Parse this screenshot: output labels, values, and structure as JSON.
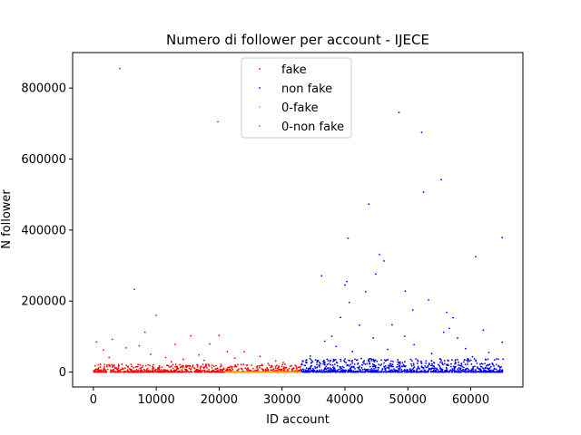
{
  "chart_data": {
    "type": "scatter",
    "title": "Numero di follower per account - IJECE",
    "xlabel": "ID account",
    "ylabel": "N follower",
    "xlim": [
      -3300,
      68300
    ],
    "ylim": [
      -42000,
      900000
    ],
    "xticks": [
      0,
      10000,
      20000,
      30000,
      40000,
      50000,
      60000
    ],
    "xtick_labels": [
      "0",
      "10000",
      "20000",
      "30000",
      "40000",
      "50000",
      "60000"
    ],
    "yticks": [
      0,
      200000,
      400000,
      600000,
      800000
    ],
    "ytick_labels": [
      "0",
      "200000",
      "400000",
      "600000",
      "800000"
    ],
    "grid": false,
    "legend_position": "top-center",
    "series": [
      {
        "name": "fake",
        "color": "#ff0000",
        "x_range": [
          0,
          33000
        ],
        "points": [
          [
            4200,
            855000
          ],
          [
            19800,
            705000
          ],
          [
            6500,
            233000
          ],
          [
            10000,
            160000
          ],
          [
            8200,
            112000
          ],
          [
            15500,
            102000
          ],
          [
            13000,
            78000
          ],
          [
            3000,
            92000
          ],
          [
            20000,
            103000
          ],
          [
            24000,
            57000
          ],
          [
            500,
            85000
          ],
          [
            18500,
            79000
          ],
          [
            7300,
            74000
          ],
          [
            26500,
            44000
          ],
          [
            11500,
            41000
          ],
          [
            22500,
            39000
          ],
          [
            1600,
            62000
          ],
          [
            29000,
            31000
          ],
          [
            16800,
            48000
          ],
          [
            9100,
            50000
          ],
          [
            5200,
            68000
          ],
          [
            14300,
            36000
          ],
          [
            21300,
            58000
          ],
          [
            27800,
            24000
          ],
          [
            2500,
            41000
          ],
          [
            31500,
            18000
          ],
          [
            12400,
            29000
          ],
          [
            17600,
            33000
          ],
          [
            23500,
            21000
          ],
          [
            30200,
            27000
          ]
        ]
      },
      {
        "name": "non fake",
        "color": "#0000ff",
        "x_range": [
          33000,
          65200
        ],
        "points": [
          [
            48600,
            731000
          ],
          [
            52200,
            675000
          ],
          [
            55300,
            542000
          ],
          [
            52500,
            507000
          ],
          [
            43800,
            473000
          ],
          [
            40500,
            377000
          ],
          [
            65000,
            379000
          ],
          [
            60800,
            325000
          ],
          [
            45500,
            331000
          ],
          [
            46200,
            313000
          ],
          [
            36300,
            271000
          ],
          [
            44900,
            276000
          ],
          [
            40300,
            255000
          ],
          [
            49600,
            228000
          ],
          [
            40000,
            245000
          ],
          [
            43300,
            226000
          ],
          [
            40700,
            196000
          ],
          [
            53300,
            203000
          ],
          [
            39300,
            154000
          ],
          [
            50800,
            175000
          ],
          [
            57200,
            153000
          ],
          [
            56200,
            168000
          ],
          [
            42300,
            132000
          ],
          [
            47500,
            133000
          ],
          [
            56600,
            123000
          ],
          [
            55700,
            112000
          ],
          [
            62000,
            118000
          ],
          [
            57900,
            96000
          ],
          [
            37900,
            101000
          ],
          [
            65000,
            84000
          ],
          [
            44500,
            96000
          ],
          [
            49500,
            101000
          ],
          [
            51000,
            77000
          ],
          [
            38600,
            72000
          ],
          [
            36800,
            87000
          ],
          [
            59200,
            66000
          ],
          [
            62900,
            55000
          ],
          [
            34500,
            45000
          ],
          [
            41200,
            58000
          ],
          [
            46800,
            64000
          ],
          [
            53800,
            52000
          ],
          [
            60300,
            43000
          ],
          [
            64100,
            37000
          ],
          [
            35600,
            32000
          ]
        ]
      },
      {
        "name": "0-fake",
        "color": "#ffa500",
        "x_range": [
          0,
          33000
        ],
        "points": []
      },
      {
        "name": "0-non fake",
        "color": "#1f9fa0",
        "x_range": [
          33000,
          65200
        ],
        "points": []
      }
    ]
  }
}
